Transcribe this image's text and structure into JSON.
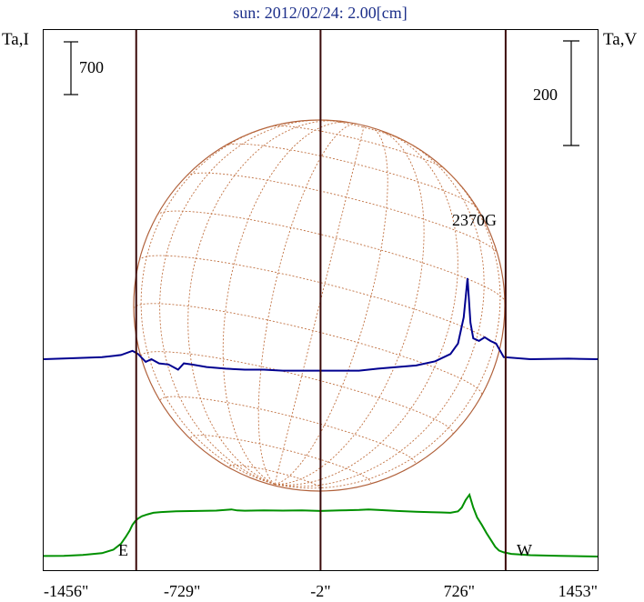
{
  "chart_data": {
    "type": "line",
    "title": "sun: 2012/02/24: 2.00[cm]",
    "left_axis_label": "Ta,I",
    "right_axis_label": "Ta,V",
    "scale_bar_left": "700",
    "scale_bar_right": "200",
    "east_label": "E",
    "west_label": "W",
    "annotation": "2370G",
    "x_tick_labels": [
      "-1456\"",
      "-729\"",
      "-2\"",
      "726\"",
      "1453\""
    ],
    "x_ticks": [
      -1456,
      -729,
      -2,
      726,
      1453
    ],
    "xlim": [
      -1456,
      1453
    ],
    "limb_positions": [
      -970,
      970
    ],
    "grid": false,
    "colors": {
      "series_I": "#009000",
      "series_V": "#000090",
      "limb_lines": "#3a0a0a",
      "disk": "#b0603a",
      "title": "#1c2f8a"
    },
    "series": [
      {
        "key": "I",
        "points": [
          [
            -1456,
            7
          ],
          [
            -1350,
            10
          ],
          [
            -1250,
            20
          ],
          [
            -1150,
            45
          ],
          [
            -1090,
            90
          ],
          [
            -1050,
            170
          ],
          [
            -1025,
            260
          ],
          [
            -1005,
            340
          ],
          [
            -990,
            420
          ],
          [
            -975,
            470
          ],
          [
            -960,
            505
          ],
          [
            -940,
            535
          ],
          [
            -910,
            560
          ],
          [
            -880,
            580
          ],
          [
            -840,
            590
          ],
          [
            -760,
            600
          ],
          [
            -650,
            605
          ],
          [
            -550,
            610
          ],
          [
            -470,
            625
          ],
          [
            -440,
            612
          ],
          [
            -400,
            608
          ],
          [
            -300,
            612
          ],
          [
            -200,
            610
          ],
          [
            -100,
            612
          ],
          [
            -2,
            605
          ],
          [
            100,
            612
          ],
          [
            200,
            618
          ],
          [
            250,
            625
          ],
          [
            300,
            618
          ],
          [
            400,
            605
          ],
          [
            500,
            595
          ],
          [
            580,
            588
          ],
          [
            630,
            585
          ],
          [
            680,
            580
          ],
          [
            720,
            600
          ],
          [
            740,
            650
          ],
          [
            760,
            750
          ],
          [
            780,
            820
          ],
          [
            800,
            650
          ],
          [
            820,
            520
          ],
          [
            845,
            420
          ],
          [
            870,
            310
          ],
          [
            895,
            210
          ],
          [
            915,
            130
          ],
          [
            935,
            80
          ],
          [
            960,
            55
          ],
          [
            1000,
            35
          ],
          [
            1100,
            18
          ],
          [
            1250,
            10
          ],
          [
            1453,
            0
          ]
        ]
      },
      {
        "key": "V",
        "points": [
          [
            -1456,
            0
          ],
          [
            -1300,
            2
          ],
          [
            -1150,
            4
          ],
          [
            -1050,
            8
          ],
          [
            -990,
            16
          ],
          [
            -960,
            10
          ],
          [
            -920,
            -5
          ],
          [
            -890,
            0
          ],
          [
            -850,
            -8
          ],
          [
            -800,
            -10
          ],
          [
            -750,
            -20
          ],
          [
            -720,
            -8
          ],
          [
            -680,
            -10
          ],
          [
            -600,
            -15
          ],
          [
            -500,
            -18
          ],
          [
            -400,
            -20
          ],
          [
            -300,
            -20
          ],
          [
            -200,
            -22
          ],
          [
            -100,
            -22
          ],
          [
            -2,
            -22
          ],
          [
            100,
            -22
          ],
          [
            200,
            -22
          ],
          [
            300,
            -18
          ],
          [
            400,
            -15
          ],
          [
            500,
            -12
          ],
          [
            600,
            -4
          ],
          [
            680,
            10
          ],
          [
            720,
            30
          ],
          [
            750,
            80
          ],
          [
            770,
            155
          ],
          [
            785,
            70
          ],
          [
            800,
            40
          ],
          [
            830,
            35
          ],
          [
            860,
            42
          ],
          [
            890,
            35
          ],
          [
            920,
            30
          ],
          [
            960,
            4
          ],
          [
            1100,
            0
          ],
          [
            1300,
            1
          ],
          [
            1453,
            0
          ]
        ]
      }
    ]
  }
}
